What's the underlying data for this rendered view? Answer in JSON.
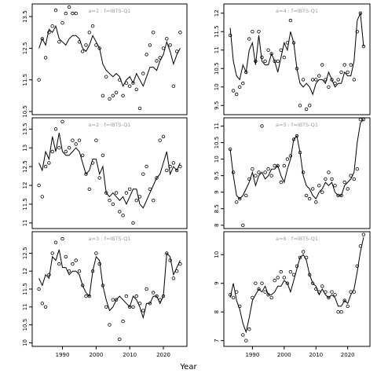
{
  "figure": {
    "xlabel": "Year"
  },
  "chart_data": [
    {
      "type": "scatter",
      "title": "a=1 : f=IBTS-Q1",
      "xlim": [
        1981,
        2027
      ],
      "ylim": [
        10.4,
        13.9
      ],
      "xticks": [],
      "yticks": [
        10.5,
        11.5,
        12.5,
        13.5
      ],
      "fit": {
        "x": [
          1983,
          1984,
          1985,
          1986,
          1987,
          1988,
          1989,
          1990,
          1991,
          1992,
          1993,
          1994,
          1995,
          1996,
          1997,
          1998,
          1999,
          2000,
          2001,
          2002,
          2003,
          2004,
          2005,
          2006,
          2007,
          2008,
          2009,
          2010,
          2011,
          2012,
          2013,
          2014,
          2015,
          2016,
          2017,
          2018,
          2019,
          2020,
          2021,
          2022,
          2023,
          2024,
          2025
        ],
        "y": [
          12.5,
          12.8,
          12.6,
          13.1,
          13.0,
          13.2,
          12.8,
          12.7,
          12.6,
          12.8,
          12.9,
          12.9,
          12.8,
          12.5,
          12.4,
          12.6,
          12.9,
          12.7,
          12.5,
          12.0,
          11.8,
          11.7,
          11.6,
          11.7,
          11.6,
          11.3,
          11.5,
          11.6,
          11.4,
          11.7,
          11.5,
          11.3,
          11.6,
          11.9,
          11.9,
          11.8,
          12.1,
          12.3,
          12.7,
          12.4,
          12.0,
          12.3,
          12.5
        ]
      },
      "points": {
        "x": [
          1983,
          1984,
          1985,
          1986,
          1987,
          1988,
          1989,
          1990,
          1991,
          1992,
          1993,
          1994,
          1995,
          1996,
          1997,
          1998,
          1999,
          2000,
          2001,
          2002,
          2003,
          2004,
          2005,
          2006,
          2007,
          2008,
          2009,
          2010,
          2011,
          2012,
          2013,
          2014,
          2015,
          2016,
          2017,
          2018,
          2019,
          2020,
          2021,
          2022,
          2023,
          2024,
          2025
        ],
        "y": [
          11.5,
          12.8,
          12.2,
          13.0,
          13.2,
          13.7,
          12.7,
          13.3,
          13.6,
          13.8,
          13.6,
          13.6,
          12.7,
          12.4,
          12.6,
          13.0,
          13.2,
          12.6,
          12.5,
          11.0,
          11.6,
          10.9,
          11.0,
          11.1,
          11.5,
          11.0,
          11.4,
          11.3,
          11.4,
          11.2,
          10.6,
          11.7,
          12.3,
          12.6,
          13.0,
          12.1,
          12.2,
          12.5,
          12.8,
          12.6,
          11.3,
          12.4,
          13.0
        ]
      }
    },
    {
      "type": "scatter",
      "title": "a=4 : f=IBTS-Q1",
      "xlim": [
        1981,
        2027
      ],
      "ylim": [
        9.25,
        12.25
      ],
      "xticks": [],
      "yticks": [
        9.5,
        10.0,
        10.5,
        11.0,
        11.5,
        12.0
      ],
      "fit": {
        "x": [
          1983,
          1984,
          1985,
          1986,
          1987,
          1988,
          1989,
          1990,
          1991,
          1992,
          1993,
          1994,
          1995,
          1996,
          1997,
          1998,
          1999,
          2000,
          2001,
          2002,
          2003,
          2004,
          2005,
          2006,
          2007,
          2008,
          2009,
          2010,
          2011,
          2012,
          2013,
          2014,
          2015,
          2016,
          2017,
          2018,
          2019,
          2020,
          2021,
          2022,
          2023,
          2024,
          2025
        ],
        "y": [
          11.6,
          10.7,
          10.3,
          10.2,
          10.6,
          10.4,
          11.0,
          11.2,
          10.6,
          11.4,
          10.7,
          10.6,
          10.6,
          10.9,
          10.7,
          10.4,
          10.8,
          11.2,
          11.0,
          11.5,
          11.2,
          10.5,
          10.1,
          10.0,
          10.1,
          10.0,
          9.8,
          10.1,
          10.2,
          10.2,
          10.1,
          10.4,
          10.2,
          10.0,
          10.1,
          10.1,
          10.4,
          10.3,
          10.3,
          10.7,
          11.8,
          12.0,
          11.1
        ]
      },
      "points": {
        "x": [
          1983,
          1984,
          1985,
          1986,
          1987,
          1988,
          1989,
          1990,
          1991,
          1992,
          1993,
          1994,
          1995,
          1996,
          1997,
          1998,
          1999,
          2000,
          2001,
          2002,
          2003,
          2004,
          2005,
          2006,
          2007,
          2008,
          2009,
          2010,
          2011,
          2012,
          2013,
          2014,
          2015,
          2016,
          2017,
          2018,
          2019,
          2020,
          2021,
          2022,
          2023,
          2024,
          2025
        ],
        "y": [
          11.4,
          9.9,
          9.8,
          10.0,
          10.1,
          10.4,
          11.3,
          11.5,
          10.7,
          11.5,
          10.8,
          10.7,
          11.0,
          10.9,
          10.7,
          10.7,
          11.0,
          10.8,
          11.2,
          11.8,
          11.2,
          10.5,
          9.5,
          10.2,
          9.4,
          9.5,
          10.2,
          10.2,
          10.3,
          10.6,
          10.2,
          10.0,
          10.2,
          10.1,
          10.2,
          10.4,
          10.6,
          10.4,
          10.6,
          10.2,
          11.5,
          12.0,
          11.1
        ]
      }
    },
    {
      "type": "scatter",
      "title": "a=2 : f=IBTS-Q1",
      "xlim": [
        1981,
        2027
      ],
      "ylim": [
        10.85,
        13.8
      ],
      "xticks": [],
      "yticks": [
        11.0,
        11.5,
        12.0,
        12.5,
        13.0,
        13.5
      ],
      "fit": {
        "x": [
          1983,
          1984,
          1985,
          1986,
          1987,
          1988,
          1989,
          1990,
          1991,
          1992,
          1993,
          1994,
          1995,
          1996,
          1997,
          1998,
          1999,
          2000,
          2001,
          2002,
          2003,
          2004,
          2005,
          2006,
          2007,
          2008,
          2009,
          2010,
          2011,
          2012,
          2013,
          2014,
          2015,
          2016,
          2017,
          2018,
          2019,
          2020,
          2021,
          2022,
          2023,
          2024,
          2025
        ],
        "y": [
          12.6,
          12.4,
          12.9,
          12.7,
          13.3,
          12.9,
          13.4,
          12.9,
          12.8,
          12.8,
          12.9,
          13.0,
          12.9,
          12.6,
          12.3,
          12.4,
          12.7,
          12.7,
          12.3,
          12.5,
          11.8,
          11.7,
          11.8,
          11.7,
          11.6,
          11.7,
          11.5,
          11.7,
          11.9,
          11.9,
          11.5,
          11.4,
          11.6,
          11.8,
          12.0,
          12.2,
          12.3,
          12.6,
          12.9,
          12.3,
          12.5,
          12.4,
          12.6
        ]
      },
      "points": {
        "x": [
          1983,
          1984,
          1985,
          1986,
          1987,
          1988,
          1989,
          1990,
          1991,
          1992,
          1993,
          1994,
          1995,
          1996,
          1997,
          1998,
          1999,
          2000,
          2001,
          2002,
          2003,
          2004,
          2005,
          2006,
          2007,
          2008,
          2009,
          2010,
          2011,
          2012,
          2013,
          2014,
          2015,
          2016,
          2017,
          2018,
          2019,
          2020,
          2021,
          2022,
          2023,
          2024,
          2025
        ],
        "y": [
          12.0,
          11.7,
          12.5,
          12.6,
          12.9,
          13.5,
          13.0,
          13.7,
          12.9,
          13.0,
          13.2,
          13.1,
          13.2,
          12.8,
          12.3,
          11.9,
          12.6,
          13.2,
          12.2,
          12.8,
          11.8,
          11.6,
          11.5,
          11.8,
          11.3,
          11.2,
          11.8,
          11.9,
          11.0,
          11.6,
          11.7,
          12.3,
          12.5,
          11.9,
          11.6,
          12.2,
          13.2,
          13.3,
          12.4,
          12.5,
          12.6,
          12.4,
          12.5
        ]
      }
    },
    {
      "type": "scatter",
      "title": "a=5 : f=IBTS-Q1",
      "xlim": [
        1981,
        2027
      ],
      "ylim": [
        7.9,
        11.25
      ],
      "xticks": [],
      "yticks": [
        8.0,
        8.5,
        9.0,
        9.5,
        10.0,
        10.5,
        11.0
      ],
      "fit": {
        "x": [
          1983,
          1984,
          1985,
          1986,
          1987,
          1988,
          1989,
          1990,
          1991,
          1992,
          1993,
          1994,
          1995,
          1996,
          1997,
          1998,
          1999,
          2000,
          2001,
          2002,
          2003,
          2004,
          2005,
          2006,
          2007,
          2008,
          2009,
          2010,
          2011,
          2012,
          2013,
          2014,
          2015,
          2016,
          2017,
          2018,
          2019,
          2020,
          2021,
          2022,
          2023,
          2024,
          2025
        ],
        "y": [
          10.3,
          9.5,
          8.9,
          8.8,
          8.9,
          9.1,
          9.3,
          9.6,
          9.2,
          9.5,
          9.6,
          9.4,
          9.5,
          9.7,
          9.7,
          9.8,
          9.5,
          9.3,
          9.7,
          10.0,
          10.6,
          10.7,
          10.2,
          9.5,
          9.2,
          9.1,
          8.9,
          8.8,
          9.0,
          9.1,
          9.3,
          9.2,
          9.3,
          9.0,
          8.9,
          8.9,
          9.2,
          9.3,
          9.4,
          9.6,
          10.5,
          11.1,
          11.2
        ]
      },
      "points": {
        "x": [
          1983,
          1984,
          1985,
          1986,
          1987,
          1988,
          1989,
          1990,
          1991,
          1992,
          1993,
          1994,
          1995,
          1996,
          1997,
          1998,
          1999,
          2000,
          2001,
          2002,
          2003,
          2004,
          2005,
          2006,
          2007,
          2008,
          2009,
          2010,
          2011,
          2012,
          2013,
          2014,
          2015,
          2016,
          2017,
          2018,
          2019,
          2020,
          2021,
          2022,
          2023,
          2024,
          2025
        ],
        "y": [
          10.3,
          9.6,
          8.7,
          8.8,
          8.0,
          8.9,
          9.4,
          9.7,
          9.5,
          9.6,
          11.0,
          9.6,
          9.7,
          9.5,
          9.8,
          9.8,
          9.3,
          9.8,
          10.0,
          10.1,
          10.6,
          10.7,
          10.2,
          9.6,
          8.9,
          8.8,
          9.1,
          8.7,
          9.2,
          9.0,
          9.4,
          9.6,
          9.4,
          9.2,
          8.9,
          8.9,
          9.3,
          9.1,
          9.5,
          9.4,
          9.7,
          11.2,
          11.2
        ]
      }
    },
    {
      "type": "scatter",
      "title": "a=3 : f=IBTS-Q1",
      "xlim": [
        1981,
        2027
      ],
      "ylim": [
        9.9,
        13.1
      ],
      "xticks": [
        1990,
        2000,
        2010,
        2020
      ],
      "yticks": [
        10.0,
        10.5,
        11.0,
        11.5,
        12.0,
        12.5
      ],
      "fit": {
        "x": [
          1983,
          1984,
          1985,
          1986,
          1987,
          1988,
          1989,
          1990,
          1991,
          1992,
          1993,
          1994,
          1995,
          1996,
          1997,
          1998,
          1999,
          2000,
          2001,
          2002,
          2003,
          2004,
          2005,
          2006,
          2007,
          2008,
          2009,
          2010,
          2011,
          2012,
          2013,
          2014,
          2015,
          2016,
          2017,
          2018,
          2019,
          2020,
          2021,
          2022,
          2023,
          2024,
          2025
        ],
        "y": [
          11.8,
          11.6,
          11.9,
          11.8,
          12.4,
          12.3,
          12.6,
          12.1,
          12.1,
          11.9,
          12.0,
          12.0,
          11.9,
          11.6,
          11.4,
          11.3,
          12.0,
          12.4,
          12.3,
          11.6,
          11.2,
          10.9,
          11.0,
          11.2,
          11.3,
          11.2,
          11.1,
          11.0,
          11.3,
          11.2,
          11.0,
          10.7,
          11.1,
          11.1,
          11.3,
          11.3,
          11.1,
          11.3,
          12.5,
          12.4,
          11.9,
          12.1,
          12.3
        ]
      },
      "points": {
        "x": [
          1983,
          1984,
          1985,
          1986,
          1987,
          1988,
          1989,
          1990,
          1991,
          1992,
          1993,
          1994,
          1995,
          1996,
          1997,
          1998,
          1999,
          2000,
          2001,
          2002,
          2003,
          2004,
          2005,
          2006,
          2007,
          2008,
          2009,
          2010,
          2011,
          2012,
          2013,
          2014,
          2015,
          2016,
          2017,
          2018,
          2019,
          2020,
          2021,
          2022,
          2023,
          2024,
          2025
        ],
        "y": [
          11.5,
          11.1,
          11.0,
          11.9,
          12.5,
          12.8,
          12.2,
          12.9,
          12.4,
          12.0,
          12.2,
          12.3,
          12.0,
          11.6,
          11.3,
          11.3,
          12.0,
          12.5,
          12.2,
          11.6,
          11.0,
          10.5,
          11.2,
          11.2,
          10.1,
          10.6,
          11.3,
          11.0,
          11.0,
          11.3,
          11.1,
          10.9,
          11.5,
          11.1,
          11.4,
          11.3,
          11.2,
          11.3,
          12.5,
          12.3,
          11.8,
          12.0,
          12.2
        ]
      }
    },
    {
      "type": "scatter",
      "title": "a=6 : f=IBTS-Q1",
      "xlim": [
        1981,
        2027
      ],
      "ylim": [
        6.8,
        10.8
      ],
      "xticks": [
        1990,
        2000,
        2010,
        2020
      ],
      "yticks": [
        7,
        8,
        9,
        10
      ],
      "fit": {
        "x": [
          1983,
          1984,
          1985,
          1986,
          1987,
          1988,
          1989,
          1990,
          1991,
          1992,
          1993,
          1994,
          1995,
          1996,
          1997,
          1998,
          1999,
          2000,
          2001,
          2002,
          2003,
          2004,
          2005,
          2006,
          2007,
          2008,
          2009,
          2010,
          2011,
          2012,
          2013,
          2014,
          2015,
          2016,
          2017,
          2018,
          2019,
          2020,
          2021,
          2022,
          2023,
          2024,
          2025
        ],
        "y": [
          8.5,
          9.0,
          8.4,
          8.1,
          7.6,
          7.3,
          7.8,
          8.4,
          8.6,
          8.8,
          8.7,
          8.9,
          8.6,
          8.6,
          8.7,
          8.9,
          8.9,
          9.1,
          9.0,
          8.7,
          9.1,
          9.5,
          9.9,
          10.0,
          9.8,
          9.3,
          9.0,
          8.9,
          8.6,
          8.8,
          8.6,
          8.5,
          8.6,
          8.5,
          8.2,
          8.2,
          8.4,
          8.3,
          8.6,
          8.8,
          9.4,
          10.1,
          10.6
        ]
      },
      "points": {
        "x": [
          1983,
          1984,
          1985,
          1986,
          1987,
          1988,
          1989,
          1990,
          1991,
          1992,
          1993,
          1994,
          1995,
          1996,
          1997,
          1998,
          1999,
          2000,
          2001,
          2002,
          2003,
          2004,
          2005,
          2006,
          2007,
          2008,
          2009,
          2010,
          2011,
          2012,
          2013,
          2014,
          2015,
          2016,
          2017,
          2018,
          2019,
          2020,
          2021,
          2022,
          2023,
          2024,
          2025
        ],
        "y": [
          8.6,
          8.5,
          8.7,
          8.2,
          7.2,
          7.0,
          7.4,
          8.5,
          9.0,
          8.8,
          9.0,
          8.7,
          8.6,
          8.5,
          9.1,
          9.2,
          9.4,
          9.2,
          9.0,
          9.4,
          9.3,
          9.6,
          9.9,
          10.1,
          9.9,
          9.3,
          9.0,
          8.8,
          8.7,
          8.9,
          8.7,
          8.5,
          8.7,
          8.6,
          8.0,
          8.0,
          8.4,
          8.2,
          8.7,
          8.7,
          9.6,
          10.3,
          10.7
        ]
      }
    }
  ]
}
